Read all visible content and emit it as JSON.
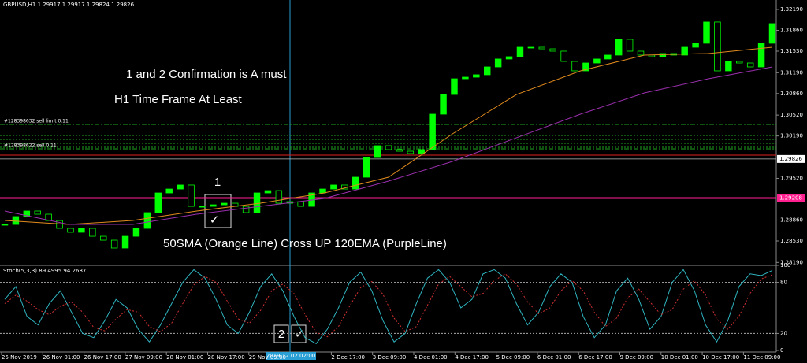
{
  "window": {
    "header": "GBPUSD,H1  1.29917 1.29917 1.29824 1.29826"
  },
  "annotations": {
    "confirm": "1 and 2 Confirmation is A must",
    "timeframe": "H1 Time Frame At Least",
    "cross": "50SMA (Orange Line) Cross UP 120EMA (PurpleLine)",
    "mark1": "1",
    "mark2": "2",
    "check1": "✓",
    "check2": "✓"
  },
  "price_chart": {
    "type": "candlestick",
    "ylim": [
      1.28144,
      1.32339
    ],
    "yticks": [
      {
        "value": 1.3219,
        "label": "1.32190"
      },
      {
        "value": 1.3186,
        "label": "1.31860"
      },
      {
        "value": 1.3153,
        "label": "1.31530"
      },
      {
        "value": 1.3119,
        "label": "1.31190"
      },
      {
        "value": 1.3086,
        "label": "1.30860"
      },
      {
        "value": 1.3052,
        "label": "1.30520"
      },
      {
        "value": 1.3019,
        "label": "1.30190"
      },
      {
        "value": 1.2952,
        "label": "1.29520"
      },
      {
        "value": 1.2886,
        "label": "1.28860"
      },
      {
        "value": 1.2853,
        "label": "1.28530"
      },
      {
        "value": 1.2819,
        "label": "1.28190"
      }
    ],
    "closes": [
      1.28791,
      1.28916,
      1.29003,
      1.28953,
      1.28853,
      1.28729,
      1.28667,
      1.28729,
      1.28604,
      1.28542,
      1.28418,
      1.28604,
      1.28729,
      1.28978,
      1.29289,
      1.29351,
      1.29414,
      1.29077,
      1.29077,
      1.29102,
      1.29127,
      1.29077,
      1.28978,
      1.29289,
      1.29326,
      1.29127,
      1.29152,
      1.29077,
      1.29289,
      1.29351,
      1.29414,
      1.29351,
      1.29538,
      1.29849,
      1.30036,
      1.29974,
      1.29949,
      1.29912,
      1.29974,
      1.30534,
      1.30845,
      1.31094,
      1.31119,
      1.31157,
      1.31281,
      1.31406,
      1.31443,
      1.31592,
      1.31592,
      1.31567,
      1.3153,
      1.31368,
      1.31219,
      1.31343,
      1.31406,
      1.31468,
      1.31717,
      1.3153,
      1.31468,
      1.31443,
      1.31493,
      1.31468,
      1.31592,
      1.31655,
      1.31991,
      1.31219,
      1.31368,
      1.31343,
      1.31281,
      1.31655,
      1.31966
    ],
    "color": "#00ff00",
    "sma": {
      "color": "#e08a1e",
      "values": [
        1.28853,
        1.28791,
        1.28853,
        1.29003,
        1.29127,
        1.29289,
        1.29538,
        1.30223,
        1.30845,
        1.31219,
        1.31468,
        1.31493,
        1.31592
      ]
    },
    "ema": {
      "color": "#9b2fae",
      "values": [
        1.29003,
        1.28791,
        1.28791,
        1.28953,
        1.29077,
        1.29202,
        1.29476,
        1.29787,
        1.30161,
        1.30534,
        1.3087,
        1.31094,
        1.31281
      ]
    },
    "current_price": {
      "value": 1.29826,
      "label": "1.29826"
    },
    "alert_price": {
      "value": 1.29208,
      "label": "1.29208"
    },
    "orders": [
      {
        "label": "#128398632 sell limit 0.11",
        "price": 1.30372
      },
      {
        "label": "#128398622 sell 0.11",
        "price": 1.29986
      }
    ],
    "order_levels": [
      1.30198,
      1.30136,
      1.30074,
      1.30011
    ],
    "stop_level": 1.29887
  },
  "stoch_chart": {
    "type": "line",
    "title": "Stoch(5,3,3) 89.4995 94.2687",
    "ylim": [
      0,
      100
    ],
    "yticks": [
      100,
      80,
      20,
      0
    ],
    "levels": [
      80,
      20
    ],
    "series": [
      {
        "color": "#2fb5c0",
        "values": [
          60,
          75,
          40,
          30,
          55,
          70,
          45,
          20,
          15,
          35,
          60,
          50,
          25,
          10,
          30,
          55,
          80,
          95,
          85,
          60,
          30,
          20,
          45,
          75,
          90,
          70,
          40,
          15,
          8,
          25,
          50,
          80,
          92,
          70,
          35,
          10,
          20,
          55,
          85,
          95,
          80,
          50,
          60,
          90,
          95,
          85,
          55,
          30,
          45,
          75,
          90,
          80,
          40,
          15,
          30,
          70,
          85,
          60,
          25,
          40,
          80,
          95,
          70,
          30,
          10,
          35,
          75,
          90,
          88,
          94
        ]
      },
      {
        "color": "#d03030",
        "values": [
          55,
          65,
          58,
          48,
          42,
          52,
          57,
          45,
          27,
          23,
          37,
          48,
          45,
          28,
          22,
          32,
          55,
          77,
          87,
          80,
          58,
          37,
          32,
          47,
          70,
          78,
          67,
          42,
          21,
          16,
          28,
          52,
          74,
          81,
          66,
          38,
          22,
          28,
          53,
          78,
          87,
          75,
          63,
          67,
          82,
          90,
          78,
          57,
          43,
          50,
          70,
          82,
          70,
          45,
          28,
          38,
          62,
          72,
          57,
          42,
          48,
          72,
          82,
          65,
          37,
          25,
          40,
          67,
          84,
          89
        ]
      }
    ]
  },
  "time_axis": {
    "labels": [
      "25 Nov 2019",
      "26 Nov 01:00",
      "26 Nov 17:00",
      "27 Nov 09:00",
      "28 Nov 01:00",
      "28 Nov 17:00",
      "29 Nov 09:00",
      "",
      "2 Dec 17:00",
      "3 Dec 09:00",
      "4 Dec 01:00",
      "4 Dec 17:00",
      "5 Dec 09:00",
      "6 Dec 01:00",
      "6 Dec 17:00",
      "9 Dec 09:00",
      "10 Dec 01:00",
      "10 Dec 17:00",
      "11 Dec 09:00"
    ],
    "cursor": "2019.12.02 02:00"
  }
}
